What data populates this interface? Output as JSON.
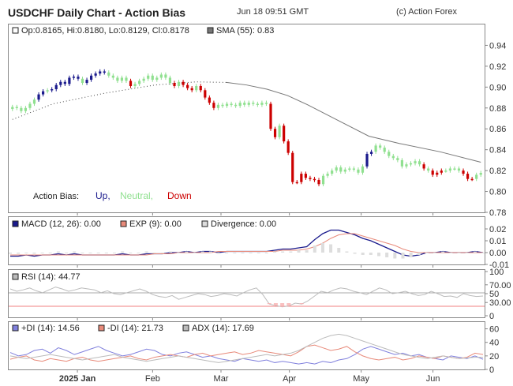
{
  "header": {
    "title": "USDCHF Daily Chart - Action Bias",
    "timestamp": "Jun 18 09:51 GMT",
    "credit": "(c) Action Forex"
  },
  "colors": {
    "up": "#1a1a8c",
    "neutral": "#90e090",
    "down": "#cc0000",
    "sma": "#777777",
    "macd": "#1a1a8c",
    "exp": "#e88a7a",
    "divergence": "#dddddd",
    "rsi": "#bbbbbb",
    "plus_di": "#8080dd",
    "minus_di": "#e88a7a",
    "adx": "#bbbbbb",
    "ref_high": "#aaaaaa",
    "ref_low": "#f08080",
    "dots": "#444444"
  },
  "chart_data": [
    {
      "type": "candlestick",
      "panel": "price",
      "legend": {
        "ohlc": "Op:0.8165, Hi:0.8180, Lo:0.8129, Cl:0.8178",
        "sma": "SMA (55): 0.83"
      },
      "action_bias": {
        "label": "Action Bias:",
        "up": "Up,",
        "neutral": "Neutral,",
        "down": "Down"
      },
      "ylim": [
        0.78,
        0.96
      ],
      "y_ticks": [
        "0.94",
        "0.92",
        "0.90",
        "0.88",
        "0.86",
        "0.84",
        "0.82",
        "0.80",
        "0.78"
      ],
      "closes": [
        0.881,
        0.88,
        0.877,
        0.88,
        0.884,
        0.888,
        0.893,
        0.896,
        0.897,
        0.898,
        0.902,
        0.905,
        0.903,
        0.909,
        0.91,
        0.908,
        0.904,
        0.907,
        0.911,
        0.913,
        0.915,
        0.914,
        0.911,
        0.909,
        0.906,
        0.909,
        0.906,
        0.901,
        0.903,
        0.906,
        0.908,
        0.911,
        0.907,
        0.909,
        0.912,
        0.909,
        0.904,
        0.901,
        0.905,
        0.902,
        0.899,
        0.897,
        0.901,
        0.897,
        0.89,
        0.885,
        0.88,
        0.883,
        0.882,
        0.884,
        0.883,
        0.882,
        0.885,
        0.883,
        0.885,
        0.884,
        0.883,
        0.885,
        0.884,
        0.86,
        0.852,
        0.863,
        0.848,
        0.837,
        0.809,
        0.809,
        0.817,
        0.813,
        0.812,
        0.811,
        0.807,
        0.815,
        0.817,
        0.82,
        0.823,
        0.819,
        0.821,
        0.822,
        0.821,
        0.818,
        0.824,
        0.836,
        0.838,
        0.844,
        0.842,
        0.838,
        0.834,
        0.832,
        0.83,
        0.824,
        0.826,
        0.827,
        0.829,
        0.826,
        0.822,
        0.82,
        0.816,
        0.818,
        0.82,
        0.82,
        0.822,
        0.822,
        0.82,
        0.817,
        0.812,
        0.812,
        0.816,
        0.8178
      ],
      "bias": [
        "N",
        "N",
        "N",
        "N",
        "N",
        "N",
        "U",
        "U",
        "N",
        "U",
        "U",
        "U",
        "U",
        "U",
        "U",
        "U",
        "N",
        "U",
        "U",
        "U",
        "U",
        "U",
        "N",
        "N",
        "N",
        "N",
        "N",
        "D",
        "N",
        "N",
        "N",
        "N",
        "N",
        "N",
        "N",
        "N",
        "N",
        "D",
        "N",
        "D",
        "D",
        "D",
        "N",
        "D",
        "D",
        "D",
        "D",
        "N",
        "N",
        "N",
        "N",
        "N",
        "N",
        "N",
        "N",
        "N",
        "N",
        "N",
        "N",
        "D",
        "D",
        "N",
        "D",
        "D",
        "D",
        "D",
        "D",
        "D",
        "D",
        "D",
        "D",
        "N",
        "N",
        "N",
        "N",
        "N",
        "N",
        "N",
        "N",
        "N",
        "N",
        "U",
        "U",
        "N",
        "N",
        "N",
        "N",
        "N",
        "N",
        "N",
        "N",
        "N",
        "N",
        "N",
        "D",
        "N",
        "D",
        "D",
        "D",
        "N",
        "N",
        "N",
        "N",
        "D",
        "D",
        "D",
        "N",
        "N"
      ],
      "sma_line": [
        [
          0,
          0.869
        ],
        [
          20,
          0.884
        ],
        [
          45,
          0.894
        ],
        [
          70,
          0.902
        ],
        [
          90,
          0.905
        ],
        [
          105,
          0.9045
        ],
        [
          115,
          0.902
        ],
        [
          125,
          0.898
        ],
        [
          135,
          0.892
        ],
        [
          145,
          0.883
        ],
        [
          160,
          0.868
        ],
        [
          175,
          0.853
        ],
        [
          190,
          0.846
        ],
        [
          210,
          0.838
        ],
        [
          230,
          0.828
        ]
      ],
      "x_ticks": [
        {
          "label": "2025 Jan",
          "bold": true,
          "bar": 19
        },
        {
          "label": "Feb",
          "bold": false,
          "bar": 41
        },
        {
          "label": "Mar",
          "bold": false,
          "bar": 61
        },
        {
          "label": "Apr",
          "bold": false,
          "bar": 81
        },
        {
          "label": "May",
          "bold": false,
          "bar": 102
        },
        {
          "label": "Jun",
          "bold": false,
          "bar": 123
        }
      ]
    },
    {
      "type": "line",
      "panel": "macd",
      "legend": {
        "macd": "MACD (12, 26): 0.00",
        "exp": "EXP (9): 0.00",
        "divergence": "Divergence: 0.00"
      },
      "ylim": [
        -0.01,
        0.03
      ],
      "y_ticks": [
        "0.02",
        "0.01",
        "0.00",
        "-0.01"
      ],
      "series": [
        {
          "key": "macd",
          "values": [
            -0.003,
            -0.003,
            -0.002,
            -0.003,
            -0.002,
            -0.002,
            -0.001,
            -0.002,
            -0.001,
            -0.002,
            -0.002,
            -0.002,
            -0.002,
            -0.002,
            -0.001,
            -0.002,
            -0.002,
            -0.001,
            -0.001,
            -0.001,
            0.0,
            0.0,
            0.001,
            0.0,
            0.001,
            0.001,
            0.0,
            0.001,
            0.001,
            0.001,
            0.001,
            0.001,
            0.001,
            0.002,
            0.003,
            0.003,
            0.004,
            0.005,
            0.011,
            0.016,
            0.019,
            0.019,
            0.017,
            0.015,
            0.012,
            0.01,
            0.007,
            0.004,
            0.001,
            -0.002,
            -0.003,
            -0.002,
            0.0,
            0.0,
            0.001,
            0.0,
            0.0,
            0.0,
            0.001,
            0.0
          ]
        },
        {
          "key": "exp",
          "values": [
            -0.002,
            -0.002,
            -0.002,
            -0.002,
            -0.002,
            -0.002,
            -0.002,
            -0.002,
            -0.002,
            -0.002,
            -0.002,
            -0.002,
            -0.002,
            -0.002,
            -0.002,
            -0.002,
            -0.002,
            -0.002,
            -0.001,
            -0.001,
            -0.001,
            0.0,
            0.0,
            0.0,
            0.0,
            0.0,
            0.001,
            0.001,
            0.001,
            0.001,
            0.001,
            0.001,
            0.001,
            0.001,
            0.002,
            0.002,
            0.002,
            0.003,
            0.005,
            0.008,
            0.012,
            0.015,
            0.016,
            0.016,
            0.014,
            0.012,
            0.01,
            0.008,
            0.006,
            0.003,
            0.001,
            0.0,
            0.0,
            0.0,
            0.0,
            0.0,
            0.0,
            0.0,
            0.0,
            0.0
          ]
        },
        {
          "key": "divergence",
          "values": [
            -0.001,
            -0.001,
            0.0,
            -0.001,
            0.0,
            0.0,
            0.001,
            0.0,
            0.001,
            0.0,
            0.0,
            0.0,
            0.0,
            0.0,
            0.001,
            0.0,
            0.0,
            0.001,
            0.0,
            0.0,
            0.001,
            0.0,
            0.001,
            0.0,
            0.001,
            0.001,
            -0.001,
            0.0,
            0.0,
            0.0,
            0.0,
            0.0,
            0.0,
            0.001,
            0.001,
            0.001,
            0.002,
            0.002,
            0.006,
            0.008,
            0.007,
            0.004,
            0.001,
            -0.001,
            -0.002,
            -0.002,
            -0.003,
            -0.004,
            -0.005,
            -0.005,
            -0.004,
            -0.002,
            0.0,
            0.0,
            0.001,
            0.0,
            0.0,
            0.0,
            0.001,
            0.0
          ]
        }
      ]
    },
    {
      "type": "line",
      "panel": "rsi",
      "legend": {
        "rsi": "RSI (14): 44.77"
      },
      "ylim": [
        0,
        100
      ],
      "y_ticks": [
        "100",
        "70.00",
        "50",
        "30.00",
        "0"
      ],
      "levels": [
        70,
        30
      ],
      "series": [
        {
          "key": "rsi",
          "values": [
            60,
            55,
            58,
            62,
            56,
            52,
            58,
            64,
            60,
            55,
            58,
            62,
            60,
            58,
            52,
            56,
            50,
            48,
            52,
            56,
            60,
            55,
            48,
            44,
            42,
            46,
            38,
            42,
            46,
            50,
            48,
            44,
            46,
            50,
            48,
            45,
            52,
            58,
            62,
            48,
            28,
            25,
            22,
            24,
            30,
            28,
            35,
            45,
            55,
            52,
            58,
            62,
            60,
            55,
            52,
            48,
            55,
            62,
            58,
            50,
            52,
            55,
            50,
            46,
            48,
            55,
            50,
            44,
            45,
            42,
            50,
            46,
            44,
            45
          ]
        }
      ]
    },
    {
      "type": "line",
      "panel": "dmi",
      "legend": {
        "plus_di": "+DI (14): 14.56",
        "minus_di": "-DI (14): 21.73",
        "adx": "ADX (14): 17.69"
      },
      "ylim": [
        0,
        70
      ],
      "y_ticks": [
        "60",
        "40",
        "20",
        "0"
      ],
      "series": [
        {
          "key": "plus_di",
          "values": [
            25,
            20,
            22,
            28,
            30,
            24,
            32,
            28,
            22,
            26,
            30,
            34,
            28,
            24,
            20,
            22,
            26,
            30,
            28,
            22,
            20,
            24,
            26,
            22,
            18,
            20,
            16,
            14,
            12,
            16,
            14,
            12,
            14,
            10,
            12,
            10,
            8,
            10,
            8,
            12,
            10,
            14,
            16,
            22,
            30,
            34,
            30,
            26,
            22,
            24,
            20,
            22,
            18,
            16,
            14,
            20,
            18,
            16,
            20,
            15
          ]
        },
        {
          "key": "minus_di",
          "values": [
            15,
            18,
            20,
            14,
            12,
            16,
            14,
            12,
            16,
            18,
            14,
            12,
            14,
            16,
            18,
            20,
            16,
            14,
            18,
            20,
            22,
            20,
            18,
            22,
            24,
            20,
            22,
            24,
            26,
            22,
            24,
            28,
            26,
            24,
            22,
            20,
            26,
            34,
            36,
            32,
            28,
            30,
            34,
            26,
            20,
            16,
            14,
            16,
            18,
            14,
            16,
            20,
            18,
            16,
            20,
            18,
            16,
            18,
            24,
            22
          ]
        },
        {
          "key": "adx",
          "values": [
            20,
            18,
            16,
            18,
            20,
            22,
            20,
            18,
            16,
            14,
            16,
            18,
            20,
            22,
            18,
            16,
            14,
            12,
            14,
            16,
            18,
            20,
            18,
            16,
            14,
            12,
            10,
            12,
            14,
            16,
            18,
            20,
            22,
            20,
            22,
            24,
            28,
            34,
            40,
            46,
            50,
            52,
            50,
            46,
            42,
            38,
            34,
            30,
            26,
            22,
            20,
            18,
            16,
            18,
            20,
            18,
            16,
            17,
            18,
            18
          ]
        }
      ]
    }
  ]
}
